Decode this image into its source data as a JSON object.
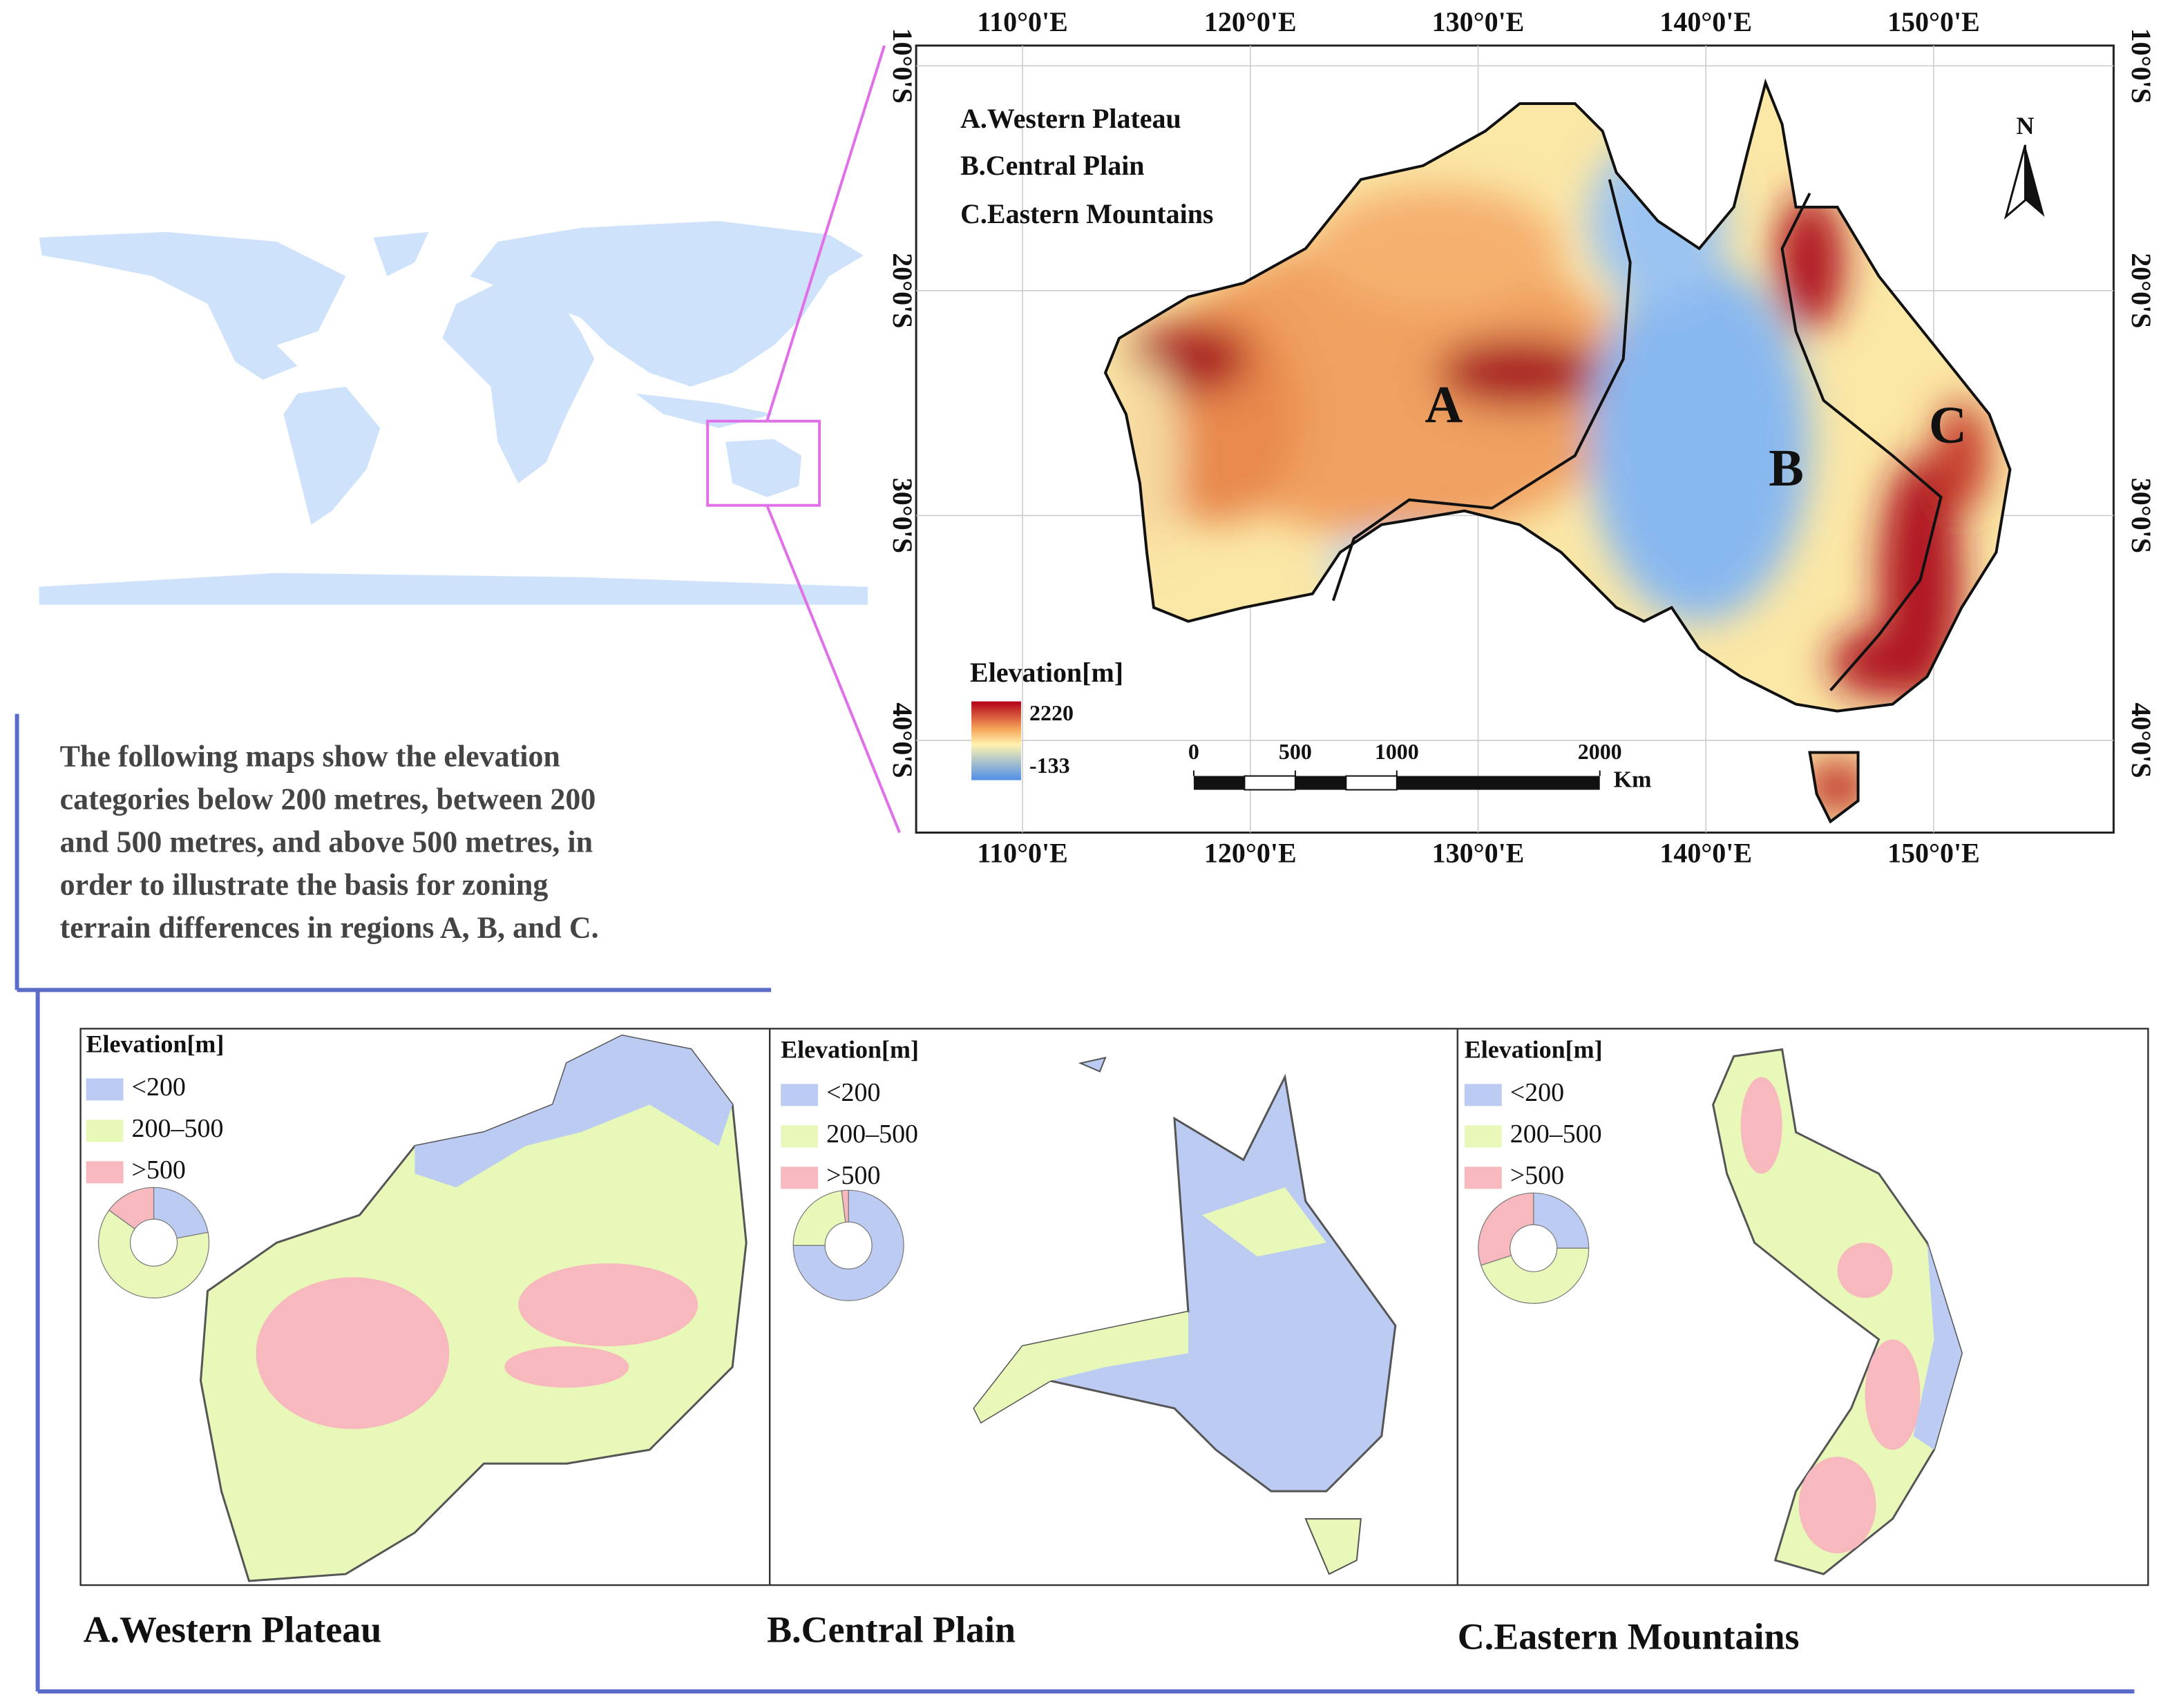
{
  "main_map": {
    "region_list": [
      "A.Western Plateau",
      "B.Central Plain",
      "C.Eastern Mountains"
    ],
    "region_labels": [
      "A",
      "B",
      "C"
    ],
    "north_label": "N",
    "lonlim": [
      105.33,
      157.9
    ],
    "lon_ticks": [
      {
        "value": 110,
        "label": "110°0'E"
      },
      {
        "value": 120,
        "label": "120°0'E"
      },
      {
        "value": 130,
        "label": "130°0'E"
      },
      {
        "value": 140,
        "label": "140°0'E"
      },
      {
        "value": 150,
        "label": "150°0'E"
      }
    ],
    "latlim": [
      -9.1,
      -44.1
    ],
    "lat_ticks": [
      {
        "value": -10,
        "label": "10°0'S"
      },
      {
        "value": -20,
        "label": "20°0'S"
      },
      {
        "value": -30,
        "label": "30°0'S"
      },
      {
        "value": -40,
        "label": "40°0'S"
      }
    ],
    "legend": {
      "title": "Elevation[m]",
      "max": 2220,
      "min": -133
    },
    "scale_bar": {
      "ticks": [
        0,
        500,
        1000,
        2000
      ],
      "unit": "Km"
    }
  },
  "description": [
    "The following maps show the elevation",
    "categories below 200 metres, between 200",
    "and 500 metres, and above 500 metres, in",
    "order to illustrate the basis for zoning",
    "terrain differences in regions A, B, and C."
  ],
  "elevation_classes": {
    "title": "Elevation[m]",
    "labels": [
      "<200",
      "200–500",
      ">500"
    ],
    "colors": [
      "#bccbf2",
      "#e8f8b8",
      "#f7b9bd"
    ]
  },
  "panels": [
    {
      "title": "A.Western Plateau",
      "shares": [
        22,
        63,
        15
      ]
    },
    {
      "title": "B.Central Plain",
      "shares": [
        75,
        23,
        2
      ]
    },
    {
      "title": "C.Eastern Mountains",
      "shares": [
        25,
        45,
        30
      ]
    }
  ]
}
